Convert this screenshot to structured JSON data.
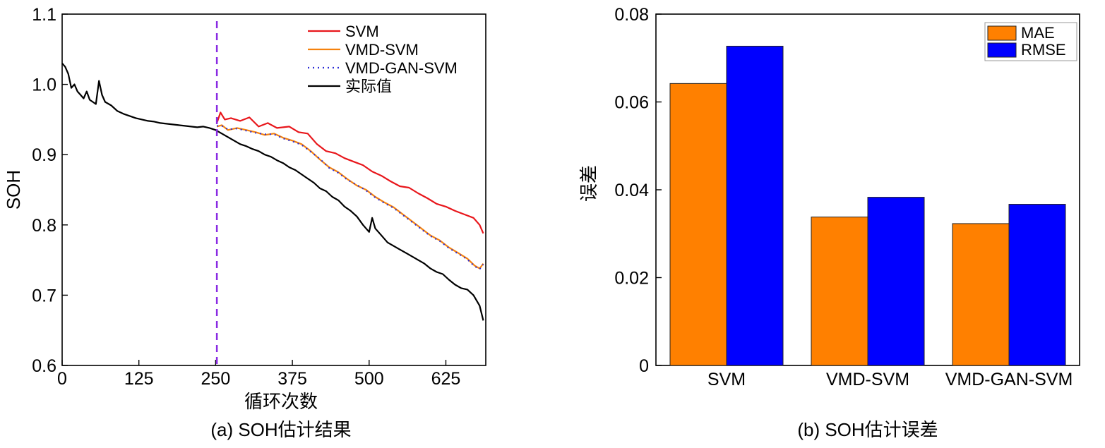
{
  "chart_data": [
    {
      "type": "line",
      "caption": "(a) SOH估计结果",
      "xlabel": "循环次数",
      "ylabel": "SOH",
      "xlim": [
        0,
        690
      ],
      "ylim": [
        0.6,
        1.1
      ],
      "xticks": [
        0,
        125,
        250,
        375,
        500,
        625
      ],
      "yticks": [
        0.6,
        0.7,
        0.8,
        0.9,
        1.0,
        1.1
      ],
      "ytick_labels": [
        "0.6",
        "0.7",
        "0.8",
        "0.9",
        "1.0",
        "1.1"
      ],
      "grid": false,
      "legend_position": "top-right",
      "split_marker_x": 252,
      "series": [
        {
          "name": "SVM",
          "color": "#e8161b",
          "style": "solid",
          "x": [
            252,
            258,
            265,
            275,
            290,
            305,
            320,
            335,
            350,
            370,
            385,
            400,
            415,
            430,
            445,
            460,
            475,
            490,
            505,
            520,
            535,
            550,
            565,
            580,
            595,
            610,
            625,
            640,
            655,
            670,
            680,
            686
          ],
          "y": [
            0.945,
            0.96,
            0.95,
            0.952,
            0.948,
            0.953,
            0.94,
            0.945,
            0.938,
            0.94,
            0.932,
            0.93,
            0.915,
            0.905,
            0.902,
            0.895,
            0.89,
            0.885,
            0.876,
            0.87,
            0.862,
            0.855,
            0.853,
            0.845,
            0.838,
            0.83,
            0.826,
            0.82,
            0.815,
            0.81,
            0.8,
            0.788
          ]
        },
        {
          "name": "VMD-SVM",
          "color": "#f5820e",
          "style": "solid",
          "x": [
            252,
            260,
            270,
            285,
            300,
            315,
            330,
            345,
            360,
            375,
            390,
            405,
            420,
            435,
            450,
            465,
            480,
            495,
            510,
            525,
            540,
            555,
            570,
            585,
            600,
            615,
            630,
            645,
            660,
            672,
            680,
            686
          ],
          "y": [
            0.94,
            0.942,
            0.935,
            0.938,
            0.935,
            0.932,
            0.928,
            0.93,
            0.924,
            0.92,
            0.915,
            0.905,
            0.893,
            0.882,
            0.875,
            0.865,
            0.856,
            0.85,
            0.84,
            0.832,
            0.825,
            0.815,
            0.805,
            0.795,
            0.785,
            0.778,
            0.768,
            0.76,
            0.752,
            0.742,
            0.738,
            0.745
          ]
        },
        {
          "name": "VMD-GAN-SVM",
          "color": "#2b2bd6",
          "style": "dotted",
          "x": [
            252,
            260,
            270,
            285,
            300,
            315,
            330,
            345,
            360,
            375,
            390,
            405,
            420,
            435,
            450,
            465,
            480,
            495,
            510,
            525,
            540,
            555,
            570,
            585,
            600,
            615,
            630,
            645,
            660,
            672,
            680,
            686
          ],
          "y": [
            0.941,
            0.941,
            0.936,
            0.937,
            0.934,
            0.931,
            0.929,
            0.929,
            0.923,
            0.919,
            0.914,
            0.904,
            0.894,
            0.881,
            0.874,
            0.864,
            0.857,
            0.849,
            0.839,
            0.831,
            0.824,
            0.814,
            0.804,
            0.794,
            0.784,
            0.777,
            0.767,
            0.759,
            0.751,
            0.741,
            0.737,
            0.744
          ]
        },
        {
          "name": "实际值",
          "color": "#000000",
          "style": "solid",
          "x": [
            0,
            5,
            10,
            15,
            20,
            25,
            30,
            35,
            40,
            45,
            50,
            55,
            60,
            65,
            70,
            80,
            90,
            100,
            110,
            120,
            130,
            140,
            150,
            160,
            170,
            180,
            190,
            200,
            210,
            220,
            230,
            240,
            250,
            260,
            270,
            280,
            290,
            300,
            310,
            320,
            330,
            340,
            350,
            360,
            370,
            380,
            390,
            400,
            410,
            420,
            430,
            440,
            450,
            460,
            470,
            480,
            490,
            500,
            505,
            510,
            520,
            530,
            540,
            550,
            560,
            570,
            580,
            590,
            600,
            610,
            620,
            630,
            640,
            650,
            660,
            670,
            680,
            686
          ],
          "y": [
            1.03,
            1.025,
            1.015,
            0.995,
            1.0,
            0.99,
            0.985,
            0.98,
            0.99,
            0.978,
            0.975,
            0.972,
            1.005,
            0.985,
            0.975,
            0.97,
            0.962,
            0.958,
            0.955,
            0.952,
            0.95,
            0.948,
            0.947,
            0.945,
            0.944,
            0.943,
            0.942,
            0.941,
            0.94,
            0.939,
            0.94,
            0.938,
            0.935,
            0.93,
            0.925,
            0.92,
            0.915,
            0.912,
            0.908,
            0.905,
            0.9,
            0.897,
            0.892,
            0.888,
            0.882,
            0.878,
            0.872,
            0.866,
            0.86,
            0.852,
            0.848,
            0.84,
            0.835,
            0.826,
            0.82,
            0.812,
            0.8,
            0.79,
            0.81,
            0.795,
            0.785,
            0.775,
            0.77,
            0.765,
            0.76,
            0.755,
            0.75,
            0.745,
            0.738,
            0.733,
            0.73,
            0.722,
            0.715,
            0.71,
            0.708,
            0.7,
            0.685,
            0.664
          ]
        }
      ]
    },
    {
      "type": "bar",
      "caption": "(b) SOH估计误差",
      "xlabel": "",
      "ylabel": "误差",
      "ylim": [
        0,
        0.08
      ],
      "yticks": [
        0,
        0.02,
        0.04,
        0.06,
        0.08
      ],
      "ytick_labels": [
        "0",
        "0.02",
        "0.04",
        "0.06",
        "0.08"
      ],
      "grid": false,
      "legend_position": "top-right",
      "categories": [
        "SVM",
        "VMD-SVM",
        "VMD-GAN-SVM"
      ],
      "series": [
        {
          "name": "MAE",
          "color": "#ff8000",
          "values": [
            0.0642,
            0.0338,
            0.0323
          ]
        },
        {
          "name": "RMSE",
          "color": "#0000ff",
          "values": [
            0.0727,
            0.0383,
            0.0367
          ]
        }
      ]
    }
  ]
}
